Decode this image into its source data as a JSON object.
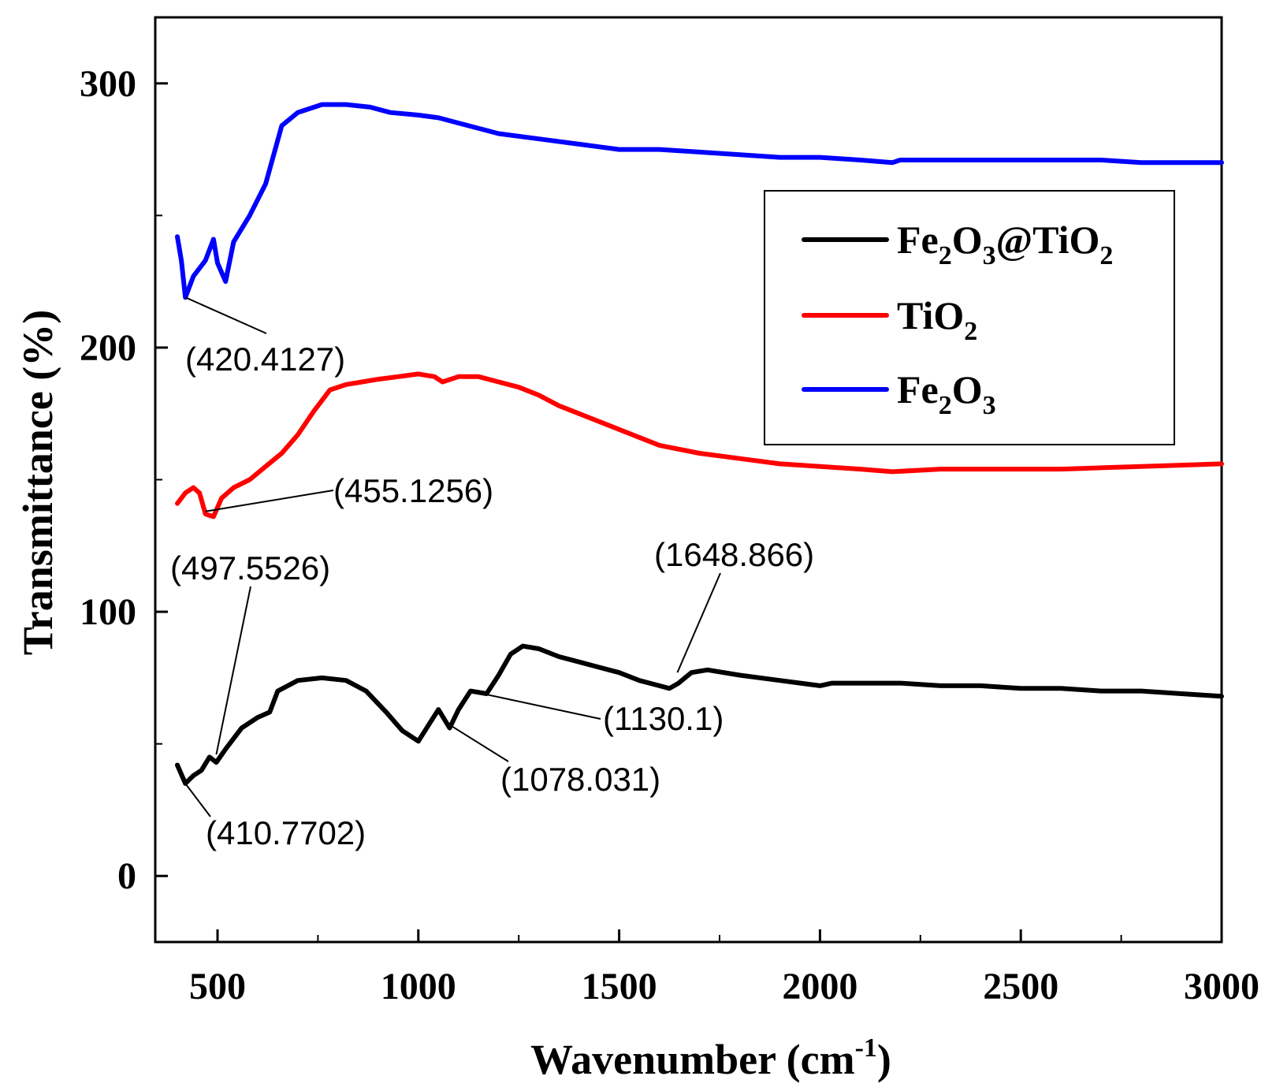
{
  "chart_data": {
    "type": "line",
    "title": "",
    "xlabel": "Wavenumber (cm",
    "xlabel_sup": "-1",
    "xlabel_end": ")",
    "ylabel": "Transmittance (%)",
    "xlim": [
      345,
      3000
    ],
    "ylim": [
      -25,
      325
    ],
    "x_ticks": [
      500,
      1000,
      1500,
      2000,
      2500,
      3000
    ],
    "y_ticks": [
      0,
      100,
      200,
      300
    ],
    "grid": false,
    "legend_position": "top-right",
    "series": [
      {
        "name": "Fe2O3@TiO2",
        "legend": {
          "a": "Fe",
          "a_sub": "2",
          "b": "O",
          "b_sub": "3",
          "c": "@TiO",
          "c_sub": "2"
        },
        "color": "#000000",
        "x": [
          400,
          420,
          440,
          460,
          480,
          497,
          520,
          560,
          600,
          630,
          650,
          700,
          760,
          820,
          870,
          920,
          960,
          1000,
          1025,
          1050,
          1078,
          1100,
          1130,
          1170,
          1200,
          1230,
          1260,
          1300,
          1350,
          1400,
          1450,
          1500,
          1550,
          1600,
          1625,
          1648,
          1680,
          1720,
          1800,
          1900,
          2000,
          2030,
          2100,
          2200,
          2300,
          2400,
          2500,
          2600,
          2700,
          2800,
          2900,
          3000
        ],
        "y": [
          42,
          35,
          38,
          40,
          45,
          43,
          48,
          56,
          60,
          62,
          70,
          74,
          75,
          74,
          70,
          62,
          55,
          51,
          57,
          63,
          56,
          63,
          70,
          69,
          76,
          84,
          87,
          86,
          83,
          81,
          79,
          77,
          74,
          72,
          71,
          73,
          77,
          78,
          76,
          74,
          72,
          73,
          73,
          73,
          72,
          72,
          71,
          71,
          70,
          70,
          69,
          68
        ]
      },
      {
        "name": "TiO2",
        "legend": {
          "a": "TiO",
          "a_sub": "2",
          "b": "",
          "b_sub": "",
          "c": "",
          "c_sub": ""
        },
        "color": "#ff0000",
        "x": [
          400,
          420,
          440,
          455,
          470,
          490,
          510,
          540,
          580,
          620,
          660,
          700,
          740,
          780,
          820,
          860,
          900,
          950,
          1000,
          1040,
          1060,
          1100,
          1150,
          1200,
          1250,
          1300,
          1350,
          1400,
          1500,
          1600,
          1700,
          1800,
          1900,
          2000,
          2100,
          2180,
          2300,
          2400,
          2600,
          2800,
          3000
        ],
        "y": [
          141,
          145,
          147,
          145,
          137,
          136,
          143,
          147,
          150,
          155,
          160,
          167,
          176,
          184,
          186,
          187,
          188,
          189,
          190,
          189,
          187,
          189,
          189,
          187,
          185,
          182,
          178,
          175,
          169,
          163,
          160,
          158,
          156,
          155,
          154,
          153,
          154,
          154,
          154,
          155,
          156
        ]
      },
      {
        "name": "Fe2O3",
        "legend": {
          "a": "Fe",
          "a_sub": "2",
          "b": "O",
          "b_sub": "3",
          "c": "",
          "c_sub": ""
        },
        "color": "#0000ff",
        "x": [
          400,
          410,
          420,
          440,
          470,
          490,
          500,
          520,
          540,
          580,
          620,
          660,
          700,
          760,
          820,
          880,
          930,
          1000,
          1050,
          1100,
          1200,
          1300,
          1400,
          1500,
          1600,
          1700,
          1800,
          1900,
          2000,
          2100,
          2180,
          2200,
          2300,
          2400,
          2500,
          2600,
          2700,
          2800,
          2900,
          3000
        ],
        "y": [
          242,
          233,
          219,
          227,
          233,
          241,
          232,
          225,
          240,
          250,
          262,
          284,
          289,
          292,
          292,
          291,
          289,
          288,
          287,
          285,
          281,
          279,
          277,
          275,
          275,
          274,
          273,
          272,
          272,
          271,
          270,
          271,
          271,
          271,
          271,
          271,
          271,
          270,
          270,
          270
        ]
      }
    ],
    "annotations": [
      {
        "label": "(420.4127)",
        "series": 2,
        "x": 420,
        "y": 219
      },
      {
        "label": "(455.1256)",
        "series": 1,
        "x": 470,
        "y": 138
      },
      {
        "label": "(497.5526)",
        "series": 0,
        "x": 497,
        "y": 46
      },
      {
        "label": "(1648.866)",
        "series": 0,
        "x": 1645,
        "y": 77
      },
      {
        "label": "(1130.1)",
        "series": 0,
        "x": 1160,
        "y": 69
      },
      {
        "label": "(1078.031)",
        "series": 0,
        "x": 1080,
        "y": 57
      },
      {
        "label": "(410.7702)",
        "series": 0,
        "x": 410,
        "y": 37
      }
    ]
  }
}
